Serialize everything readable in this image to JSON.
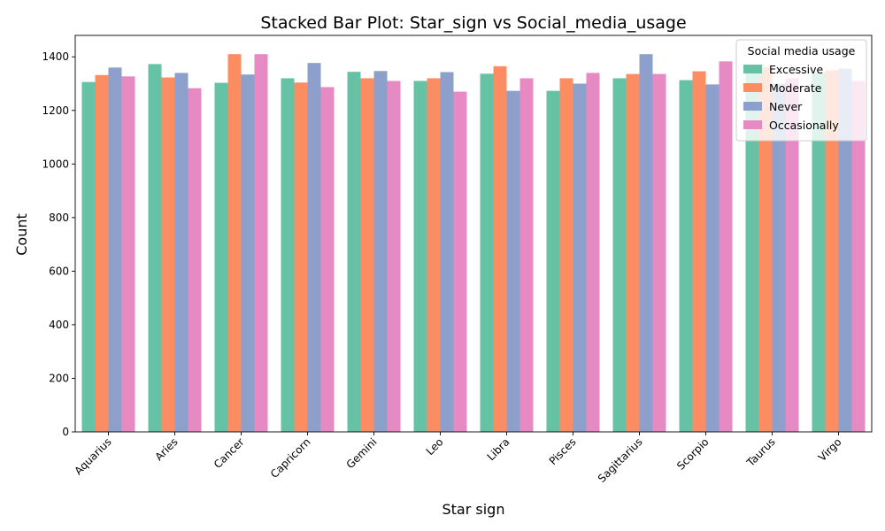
{
  "chart_data": {
    "type": "bar",
    "title": "Stacked Bar Plot: Star_sign vs Social_media_usage",
    "xlabel": "Star sign",
    "ylabel": "Count",
    "ylim": [
      0,
      1480
    ],
    "yticks": [
      0,
      200,
      400,
      600,
      800,
      1000,
      1200,
      1400
    ],
    "grid": false,
    "legend": {
      "title": "Social media usage",
      "placement": "top-right"
    },
    "categories": [
      "Aquarius",
      "Aries",
      "Cancer",
      "Capricorn",
      "Gemini",
      "Leo",
      "Libra",
      "Pisces",
      "Sagittarius",
      "Scorpio",
      "Taurus",
      "Virgo"
    ],
    "series": [
      {
        "name": "Excessive",
        "color": "#66c2a5",
        "values": [
          1306,
          1373,
          1303,
          1320,
          1344,
          1310,
          1337,
          1273,
          1320,
          1313,
          1355,
          1340
        ]
      },
      {
        "name": "Moderate",
        "color": "#fc8d62",
        "values": [
          1332,
          1323,
          1410,
          1304,
          1320,
          1320,
          1365,
          1320,
          1336,
          1346,
          1360,
          1350
        ]
      },
      {
        "name": "Never",
        "color": "#8da0cb",
        "values": [
          1360,
          1340,
          1334,
          1377,
          1347,
          1343,
          1273,
          1300,
          1410,
          1297,
          1300,
          1356
        ]
      },
      {
        "name": "Occasionally",
        "color": "#e78ac3",
        "values": [
          1327,
          1283,
          1410,
          1287,
          1310,
          1270,
          1320,
          1340,
          1336,
          1383,
          1320,
          1310
        ]
      }
    ]
  }
}
